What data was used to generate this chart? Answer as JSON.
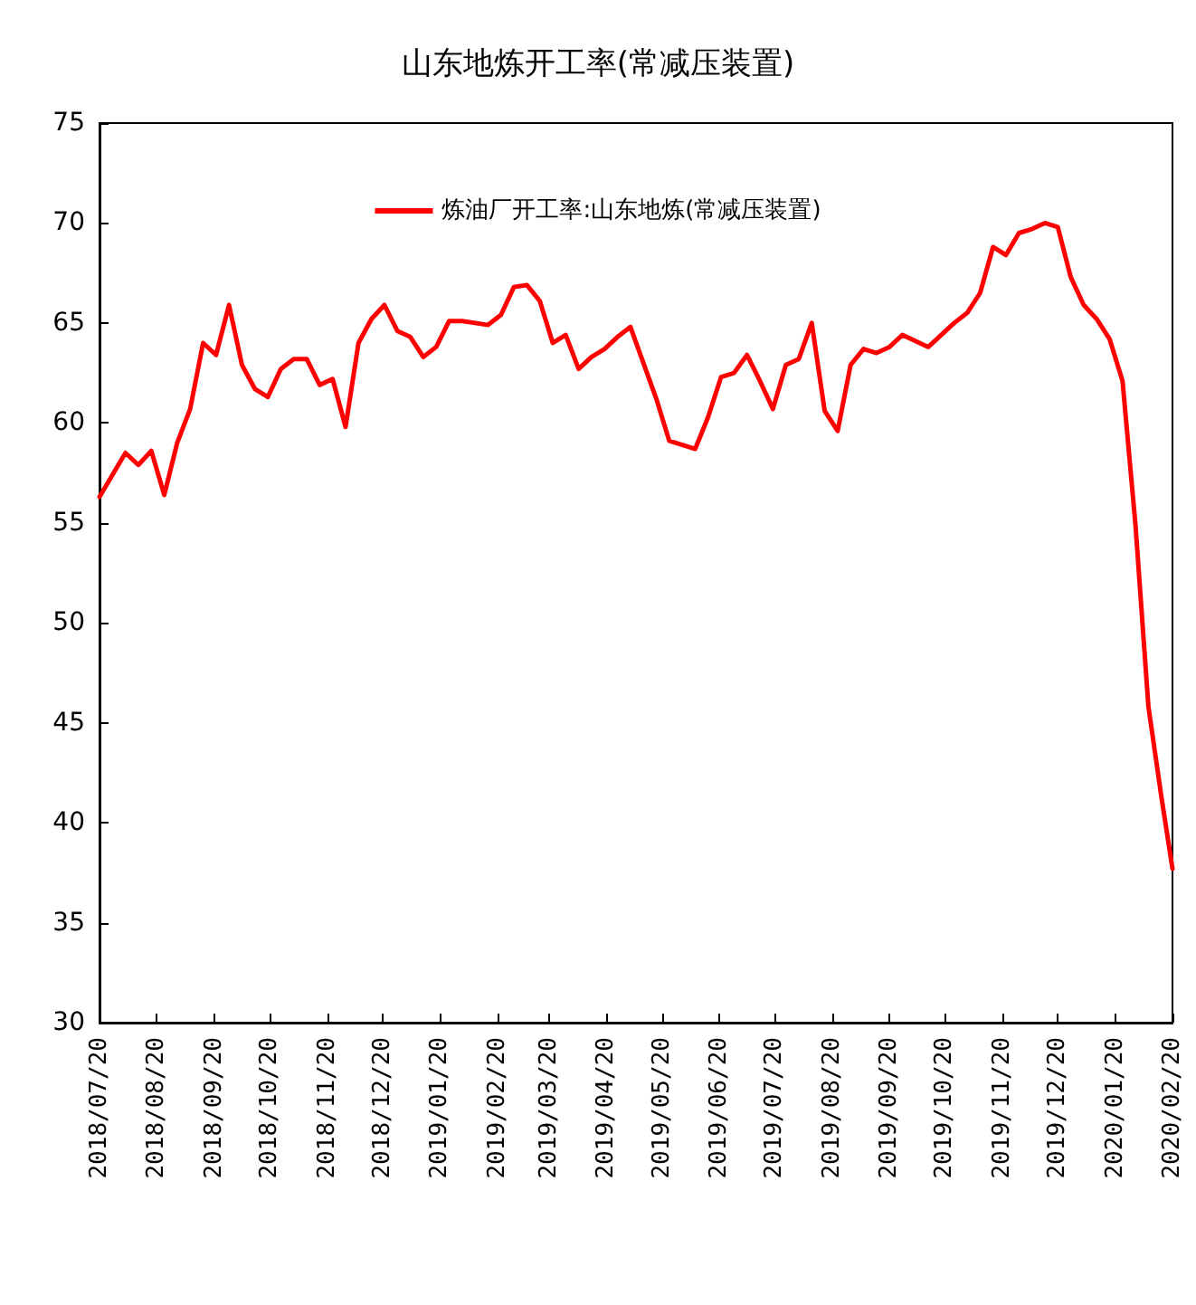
{
  "chart_data": {
    "type": "line",
    "title": "山东地炼开工率(常减压装置)",
    "x": [
      "2018-07-20",
      "2018-07-27",
      "2018-08-03",
      "2018-08-10",
      "2018-08-17",
      "2018-08-24",
      "2018-08-31",
      "2018-09-07",
      "2018-09-14",
      "2018-09-21",
      "2018-09-28",
      "2018-10-05",
      "2018-10-12",
      "2018-10-19",
      "2018-10-26",
      "2018-11-02",
      "2018-11-09",
      "2018-11-16",
      "2018-11-23",
      "2018-11-30",
      "2018-12-07",
      "2018-12-14",
      "2018-12-21",
      "2018-12-28",
      "2019-01-04",
      "2019-01-11",
      "2019-01-18",
      "2019-01-25",
      "2019-02-01",
      "2019-02-08",
      "2019-02-15",
      "2019-02-22",
      "2019-03-01",
      "2019-03-08",
      "2019-03-15",
      "2019-03-22",
      "2019-03-29",
      "2019-04-05",
      "2019-04-12",
      "2019-04-19",
      "2019-04-26",
      "2019-05-03",
      "2019-05-10",
      "2019-05-17",
      "2019-05-24",
      "2019-05-31",
      "2019-06-07",
      "2019-06-14",
      "2019-06-21",
      "2019-06-28",
      "2019-07-05",
      "2019-07-12",
      "2019-07-19",
      "2019-07-26",
      "2019-08-02",
      "2019-08-09",
      "2019-08-16",
      "2019-08-23",
      "2019-08-30",
      "2019-09-06",
      "2019-09-13",
      "2019-09-20",
      "2019-09-27",
      "2019-10-04",
      "2019-10-11",
      "2019-10-18",
      "2019-10-25",
      "2019-11-01",
      "2019-11-08",
      "2019-11-15",
      "2019-11-22",
      "2019-11-29",
      "2019-12-06",
      "2019-12-13",
      "2019-12-20",
      "2019-12-27",
      "2020-01-03",
      "2020-01-10",
      "2020-01-17",
      "2020-01-24",
      "2020-01-31",
      "2020-02-07",
      "2020-02-14",
      "2020-02-20"
    ],
    "series": [
      {
        "name": "炼油厂开工率:山东地炼(常减压装置)",
        "color": "#ff0000",
        "values": [
          56.3,
          57.4,
          58.5,
          57.9,
          58.6,
          56.4,
          59.0,
          60.7,
          64.0,
          63.4,
          65.9,
          62.9,
          61.7,
          61.3,
          62.7,
          63.2,
          63.2,
          61.9,
          62.2,
          59.8,
          64.0,
          65.2,
          65.9,
          64.6,
          64.3,
          63.3,
          63.8,
          65.1,
          65.1,
          65.0,
          64.9,
          65.4,
          66.8,
          66.9,
          66.1,
          64.0,
          64.4,
          62.7,
          63.3,
          63.7,
          64.3,
          64.8,
          63.0,
          61.2,
          59.1,
          58.9,
          58.7,
          60.3,
          62.3,
          62.5,
          63.4,
          62.1,
          60.7,
          62.9,
          63.2,
          65.0,
          60.6,
          59.6,
          62.9,
          63.7,
          63.5,
          63.8,
          64.4,
          64.1,
          63.8,
          64.4,
          65.0,
          65.5,
          66.5,
          68.8,
          68.4,
          69.5,
          69.7,
          70.0,
          69.8,
          67.3,
          65.9,
          65.2,
          64.2,
          62.1,
          54.9,
          45.8,
          41.3,
          37.7
        ]
      }
    ],
    "xlim": [
      "2018-07-20",
      "2020-02-20"
    ],
    "xticks": [
      {
        "value": "2018-07-20",
        "label": "2018/07/20"
      },
      {
        "value": "2018-08-20",
        "label": "2018/08/20"
      },
      {
        "value": "2018-09-20",
        "label": "2018/09/20"
      },
      {
        "value": "2018-10-20",
        "label": "2018/10/20"
      },
      {
        "value": "2018-11-20",
        "label": "2018/11/20"
      },
      {
        "value": "2018-12-20",
        "label": "2018/12/20"
      },
      {
        "value": "2019-01-20",
        "label": "2019/01/20"
      },
      {
        "value": "2019-02-20",
        "label": "2019/02/20"
      },
      {
        "value": "2019-03-20",
        "label": "2019/03/20"
      },
      {
        "value": "2019-04-20",
        "label": "2019/04/20"
      },
      {
        "value": "2019-05-20",
        "label": "2019/05/20"
      },
      {
        "value": "2019-06-20",
        "label": "2019/06/20"
      },
      {
        "value": "2019-07-20",
        "label": "2019/07/20"
      },
      {
        "value": "2019-08-20",
        "label": "2019/08/20"
      },
      {
        "value": "2019-09-20",
        "label": "2019/09/20"
      },
      {
        "value": "2019-10-20",
        "label": "2019/10/20"
      },
      {
        "value": "2019-11-20",
        "label": "2019/11/20"
      },
      {
        "value": "2019-12-20",
        "label": "2019/12/20"
      },
      {
        "value": "2020-01-20",
        "label": "2020/01/20"
      },
      {
        "value": "2020-02-20",
        "label": "2020/02/20"
      }
    ],
    "ylim": [
      30,
      75
    ],
    "yticks": [
      30,
      35,
      40,
      45,
      50,
      55,
      60,
      65,
      70,
      75
    ],
    "grid": false,
    "legend": "top",
    "marker": "none",
    "line_style": "solid"
  }
}
